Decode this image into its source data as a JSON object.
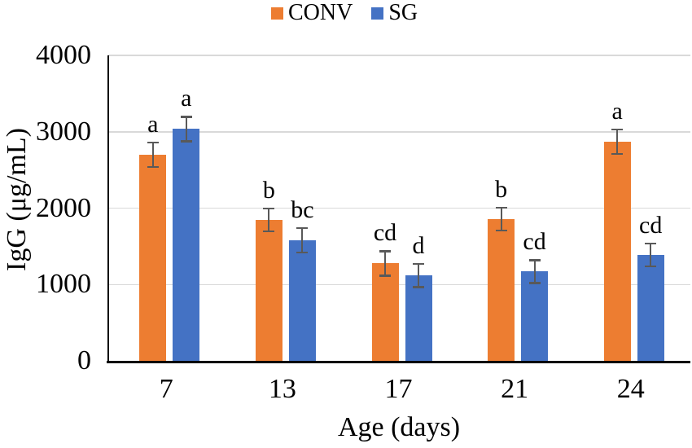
{
  "chart_data": {
    "type": "bar",
    "title": "",
    "categories": [
      "7",
      "13",
      "17",
      "21",
      "24"
    ],
    "series": [
      {
        "name": "CONV",
        "color": "#ED7D31",
        "values": [
          2700,
          1850,
          1280,
          1860,
          2870
        ],
        "errors": [
          160,
          150,
          160,
          150,
          160
        ],
        "letters": [
          "a",
          "b",
          "cd",
          "b",
          "a"
        ]
      },
      {
        "name": "SG",
        "color": "#4472C4",
        "values": [
          3040,
          1580,
          1120,
          1170,
          1390
        ],
        "errors": [
          160,
          160,
          150,
          150,
          150
        ],
        "letters": [
          "a",
          "bc",
          "d",
          "cd",
          "cd"
        ]
      }
    ],
    "xlabel": "Age (days)",
    "ylabel": "IgG (μg/mL)",
    "ylim": [
      0,
      4000
    ],
    "yticks": [
      0,
      1000,
      2000,
      3000,
      4000
    ],
    "legend_position": "top-center",
    "grid": true,
    "grid_color": "#D9D9D9",
    "errorbar_color": "#595959",
    "axis_color": "#000000",
    "text_color": "#000000"
  }
}
